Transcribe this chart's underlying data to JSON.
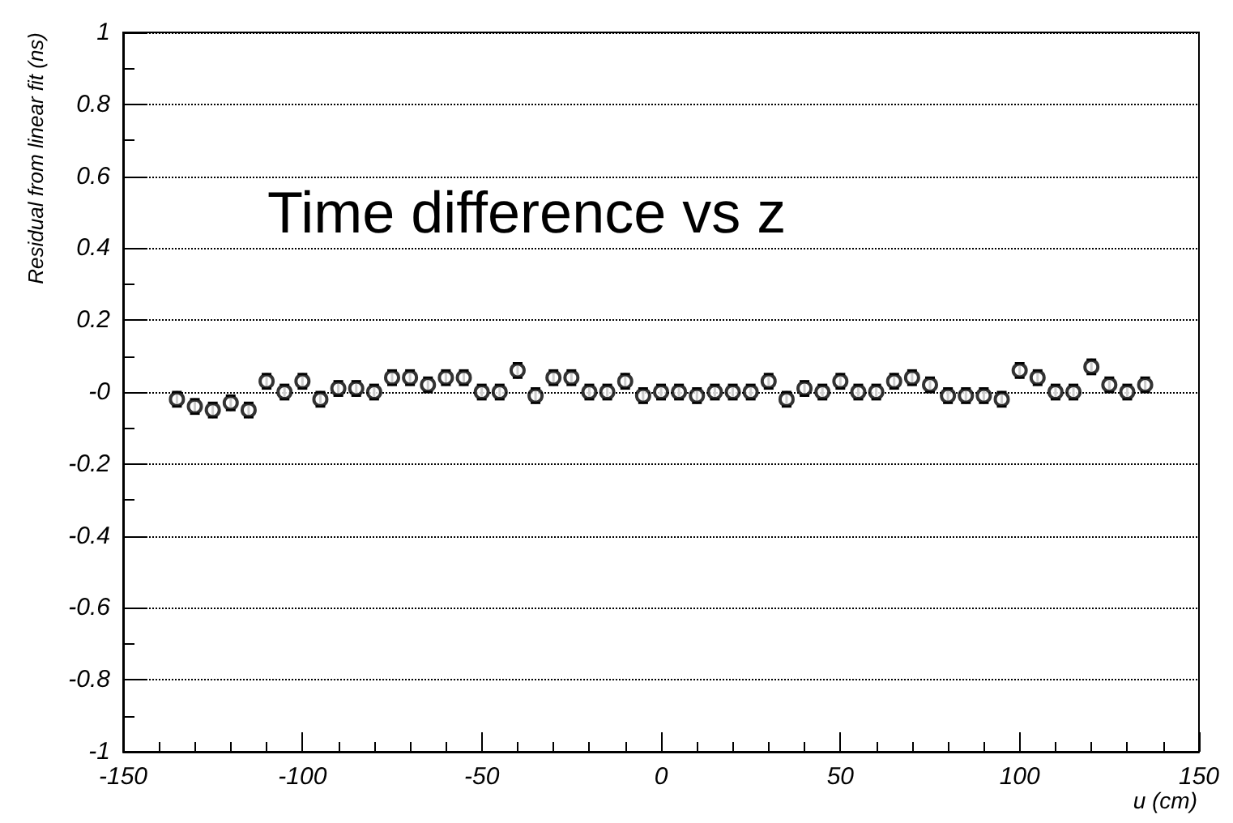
{
  "chart_data": {
    "type": "scatter",
    "title": "Time difference vs z",
    "xlabel": "u (cm)",
    "ylabel": "Residual from linear fit (ns)",
    "x": [
      -135,
      -130,
      -125,
      -120,
      -115,
      -110,
      -105,
      -100,
      -95,
      -90,
      -85,
      -80,
      -75,
      -70,
      -65,
      -60,
      -55,
      -50,
      -45,
      -40,
      -35,
      -30,
      -25,
      -20,
      -15,
      -10,
      -5,
      0,
      5,
      10,
      15,
      20,
      25,
      30,
      35,
      40,
      45,
      50,
      55,
      60,
      65,
      70,
      75,
      80,
      85,
      90,
      95,
      100,
      105,
      110,
      115,
      120,
      125,
      130,
      135
    ],
    "values": [
      -0.02,
      -0.04,
      -0.05,
      -0.03,
      -0.05,
      0.03,
      0.0,
      0.03,
      -0.02,
      0.01,
      0.01,
      0.0,
      0.04,
      0.04,
      0.02,
      0.04,
      0.04,
      0.0,
      0.0,
      0.06,
      -0.01,
      0.04,
      0.04,
      0.0,
      0.0,
      0.03,
      -0.01,
      0.0,
      0.0,
      -0.01,
      0.0,
      0.0,
      0.0,
      0.03,
      -0.02,
      0.01,
      0.0,
      0.03,
      0.0,
      0.0,
      0.03,
      0.04,
      0.02,
      -0.01,
      -0.01,
      -0.01,
      -0.02,
      0.06,
      0.04,
      0.0,
      0.0,
      0.07,
      0.02,
      0.0,
      0.02
    ],
    "errors": [
      0.02,
      0.02,
      0.02,
      0.02,
      0.02,
      0.02,
      0.02,
      0.02,
      0.02,
      0.02,
      0.02,
      0.02,
      0.02,
      0.02,
      0.02,
      0.02,
      0.02,
      0.02,
      0.02,
      0.02,
      0.02,
      0.02,
      0.02,
      0.02,
      0.02,
      0.02,
      0.02,
      0.02,
      0.02,
      0.02,
      0.02,
      0.02,
      0.02,
      0.02,
      0.02,
      0.02,
      0.02,
      0.02,
      0.02,
      0.02,
      0.02,
      0.02,
      0.02,
      0.02,
      0.02,
      0.02,
      0.02,
      0.02,
      0.02,
      0.02,
      0.02,
      0.02,
      0.02,
      0.02,
      0.02
    ],
    "color": "#000000",
    "marker": "circle",
    "xlim": [
      -150,
      150
    ],
    "xticks": [
      -150,
      -100,
      -50,
      0,
      50,
      100,
      150
    ],
    "ylim": [
      -1,
      1
    ],
    "yticks": [
      -1,
      -0.8,
      -0.6,
      -0.4,
      -0.2,
      {
        "value": 0,
        "label": "-0"
      },
      0.2,
      0.4,
      0.6,
      0.8,
      1
    ],
    "grid": "y"
  }
}
